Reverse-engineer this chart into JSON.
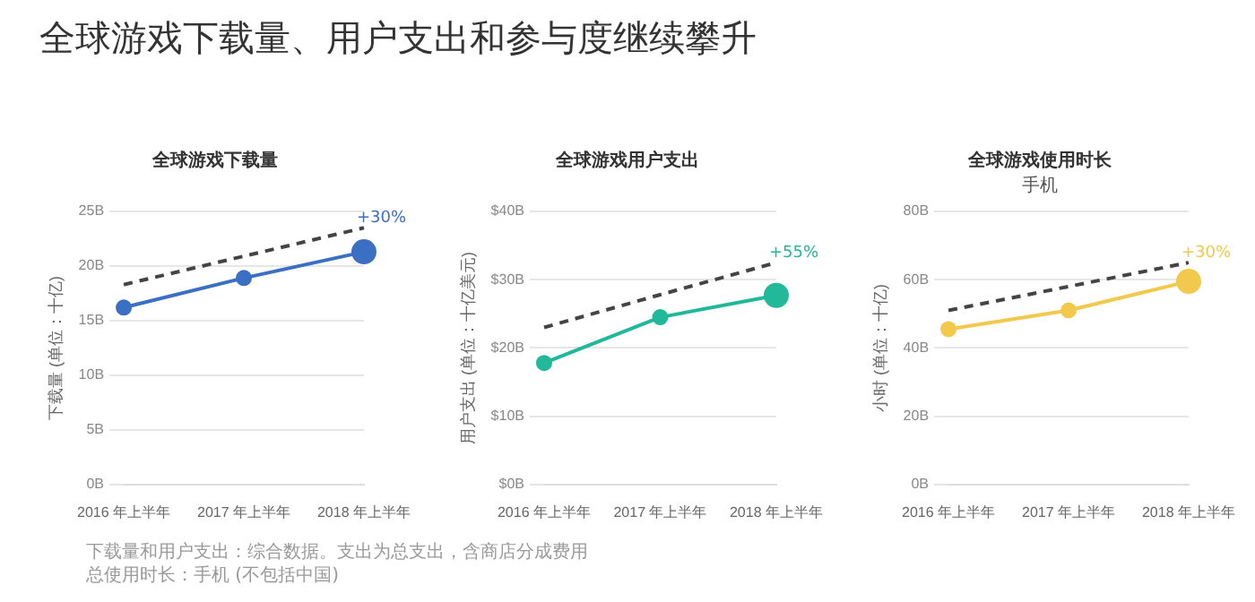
{
  "chart_data": [
    {
      "type": "other",
      "title": "全球游戏下载量、用户支出和参与度继续攀升",
      "annotations": [
        "下载量和用户支出：综合数据。支出为总支出，含商店分成费用",
        "总使用时长：手机 (不包括中国)"
      ]
    },
    {
      "type": "line",
      "title": "全球游戏下载量",
      "ylabel": "下载量 (单位：十亿)",
      "categories": [
        "2016 年上半年",
        "2017 年上半年",
        "2018 年上半年"
      ],
      "series": [
        {
          "color": "#3a6fc4",
          "values": [
            16.2,
            18.9,
            21.3
          ],
          "marker": "circle",
          "line_style": "solid"
        },
        {
          "color": "#444444",
          "values": [
            18.3,
            20.9,
            23.5
          ],
          "marker": "none",
          "line_style": "dashed"
        }
      ],
      "ylim": [
        0,
        25
      ],
      "yticks": [
        {
          "value": 0,
          "label": "0B"
        },
        {
          "value": 5,
          "label": "5B"
        },
        {
          "value": 10,
          "label": "10B"
        },
        {
          "value": 15,
          "label": "15B"
        },
        {
          "value": 20,
          "label": "20B"
        },
        {
          "value": 25,
          "label": "25B"
        }
      ],
      "grid": "y",
      "legend": false,
      "annotations": [
        {
          "text": "+30%",
          "x": "2018 年上半年",
          "y": 23.5
        }
      ]
    },
    {
      "type": "line",
      "title": "全球游戏用户支出",
      "ylabel": "用户支出 (单位：十亿美元)",
      "categories": [
        "2016 年上半年",
        "2017 年上半年",
        "2018 年上半年"
      ],
      "series": [
        {
          "color": "#22b89a",
          "values": [
            17.8,
            24.5,
            27.7
          ],
          "marker": "circle",
          "line_style": "solid"
        },
        {
          "color": "#444444",
          "values": [
            23,
            27.8,
            32.5
          ],
          "marker": "none",
          "line_style": "dashed"
        }
      ],
      "ylim": [
        0,
        40
      ],
      "yticks": [
        {
          "value": 0,
          "label": "$0B"
        },
        {
          "value": 10,
          "label": "$10B"
        },
        {
          "value": 20,
          "label": "$20B"
        },
        {
          "value": 30,
          "label": "$30B"
        },
        {
          "value": 40,
          "label": "$40B"
        }
      ],
      "grid": "y",
      "legend": false,
      "annotations": [
        {
          "text": "+55%",
          "x": "2018 年上半年",
          "y": 32.5
        }
      ]
    },
    {
      "type": "line",
      "title": "全球游戏使用时长",
      "subtitle": "手机",
      "ylabel": "小时 (单位：十亿)",
      "categories": [
        "2016 年上半年",
        "2017 年上半年",
        "2018 年上半年"
      ],
      "series": [
        {
          "color": "#f2c94c",
          "values": [
            45.5,
            51,
            59.5
          ],
          "marker": "circle",
          "line_style": "solid"
        },
        {
          "color": "#444444",
          "values": [
            51,
            58,
            65
          ],
          "marker": "none",
          "line_style": "dashed"
        }
      ],
      "ylim": [
        0,
        80
      ],
      "yticks": [
        {
          "value": 0,
          "label": "0B"
        },
        {
          "value": 20,
          "label": "20B"
        },
        {
          "value": 40,
          "label": "40B"
        },
        {
          "value": 60,
          "label": "60B"
        },
        {
          "value": 80,
          "label": "80B"
        }
      ],
      "grid": "y",
      "legend": false,
      "annotations": [
        {
          "text": "+30%",
          "x": "2018 年上半年",
          "y": 65
        }
      ]
    }
  ]
}
